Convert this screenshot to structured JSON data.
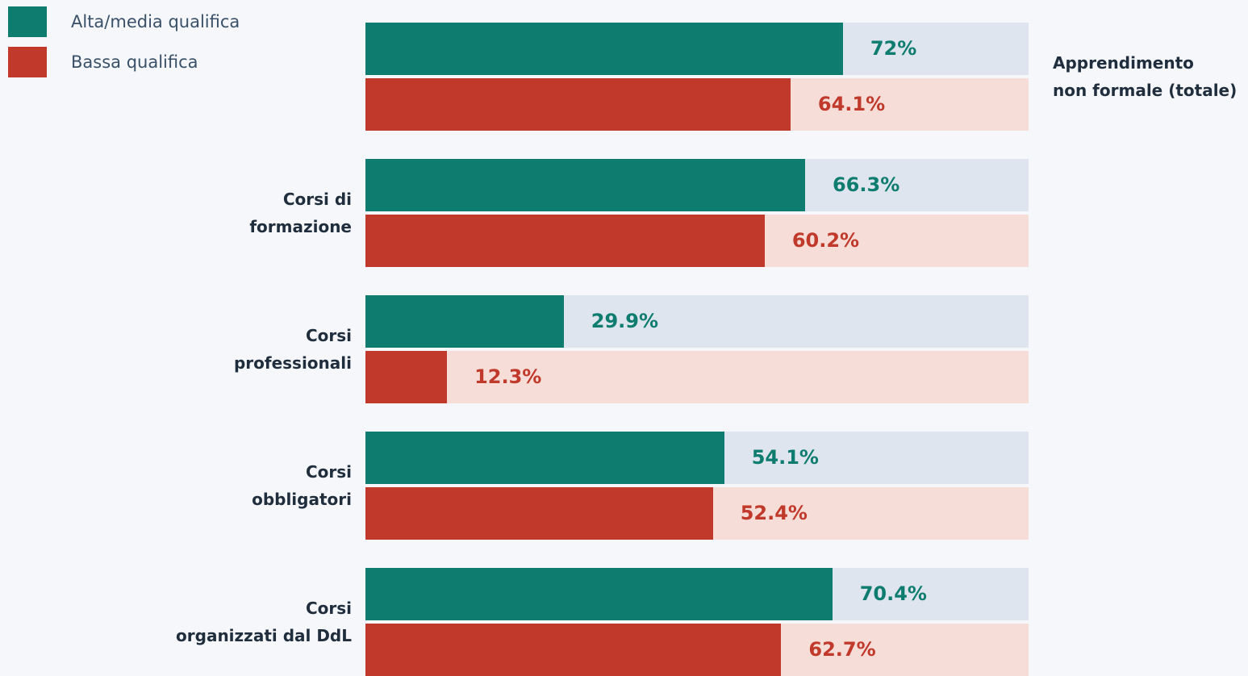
{
  "chart_data": {
    "type": "bar",
    "orientation": "horizontal",
    "categories": [
      "Apprendimento\nnon formale (totale)",
      "Corsi di\nformazione",
      "Corsi\nprofessionali",
      "Corsi\nobbligatori",
      "Corsi\norganizzati dal DdL"
    ],
    "series": [
      {
        "name": "Alta/media qualifica",
        "color": "#0e7c6f",
        "track_color": "#dee5ee",
        "values": [
          72,
          66.3,
          29.9,
          54.1,
          70.4
        ],
        "value_labels": [
          "72%",
          "66.3%",
          "29.9%",
          "54.1%",
          "70.4%"
        ]
      },
      {
        "name": "Bassa qualifica",
        "color": "#c0392b",
        "track_color": "#f6ddd7",
        "values": [
          64.1,
          60.2,
          12.3,
          52.4,
          62.7
        ],
        "value_labels": [
          "64.1%",
          "60.2%",
          "12.3%",
          "52.4%",
          "62.7%"
        ]
      }
    ],
    "xlim": [
      0,
      100
    ]
  }
}
